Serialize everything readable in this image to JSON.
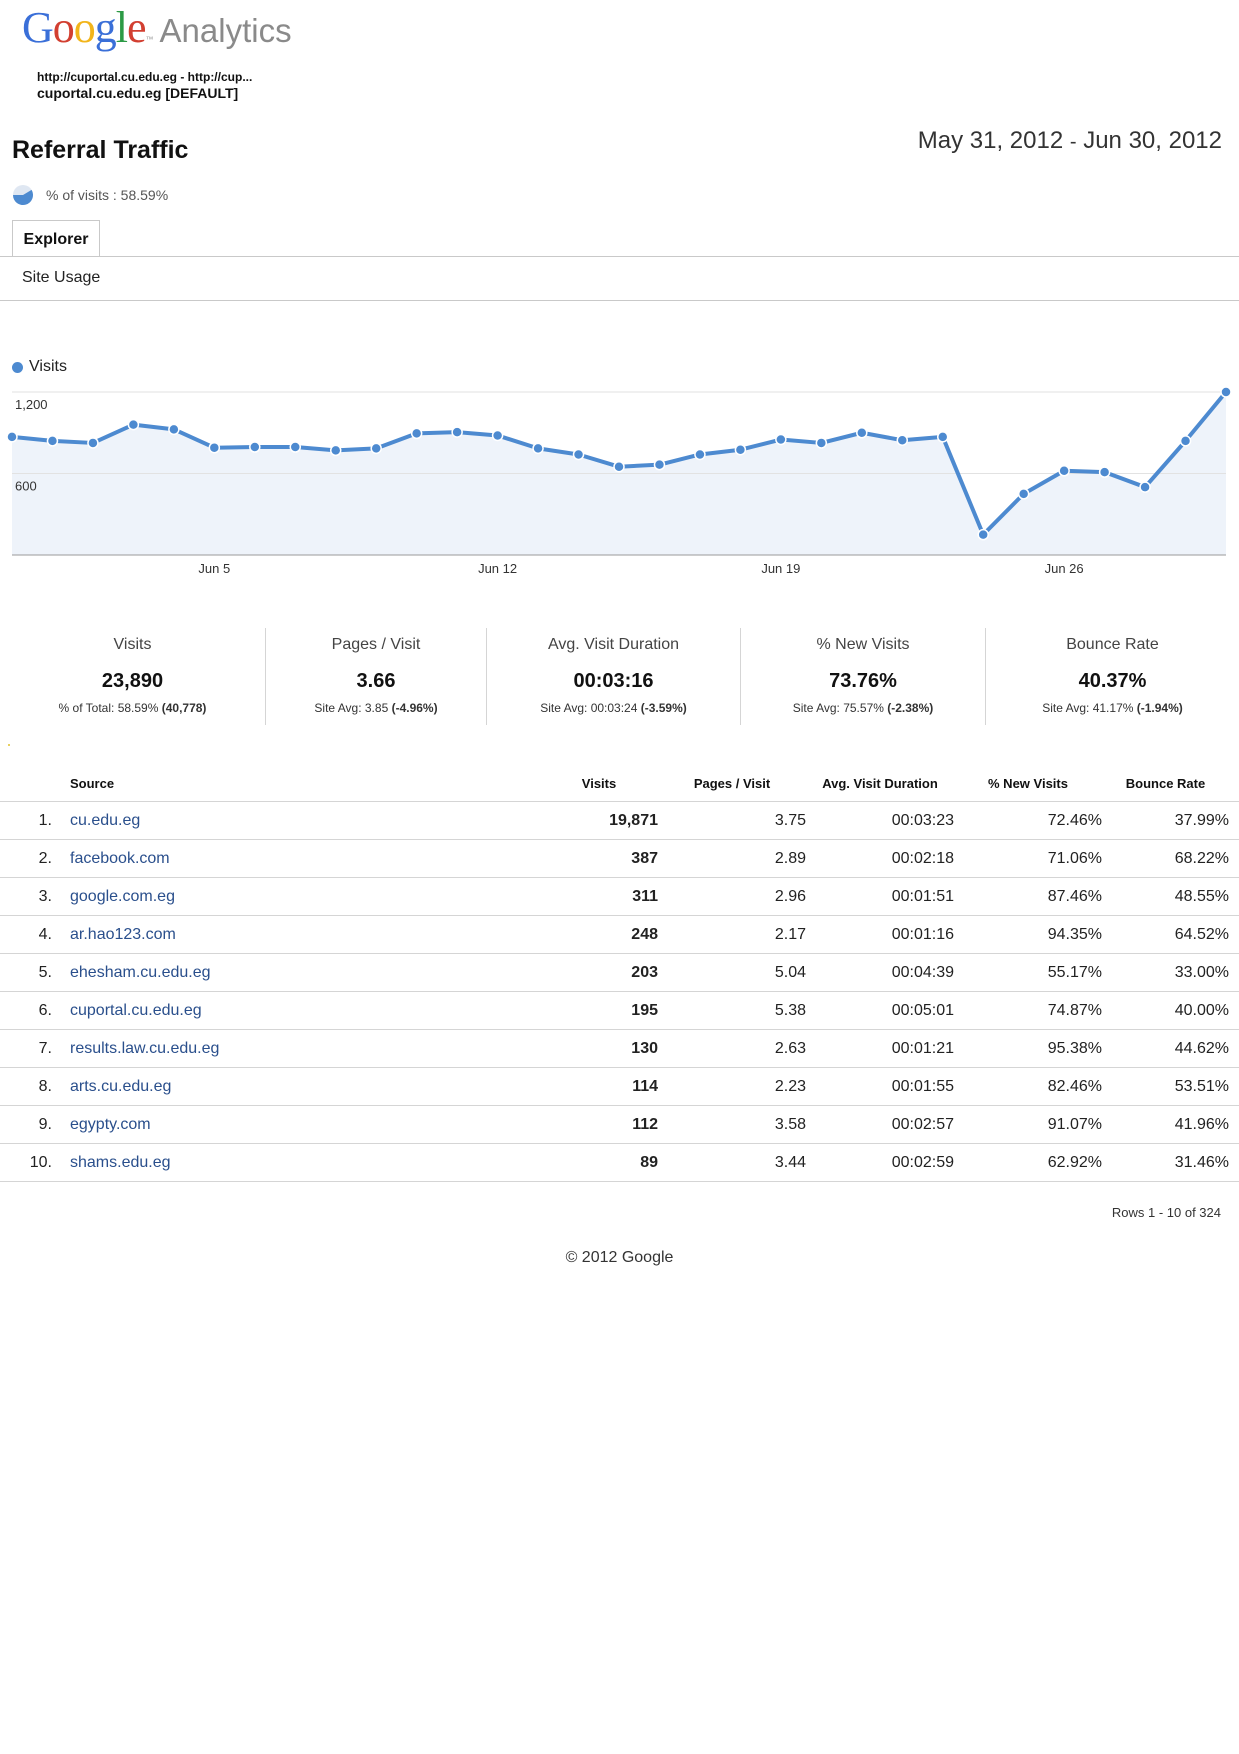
{
  "header": {
    "logo_letters": [
      {
        "ch": "G",
        "color": "#3a6fd8"
      },
      {
        "ch": "o",
        "color": "#d23f31"
      },
      {
        "ch": "o",
        "color": "#f2b51b"
      },
      {
        "ch": "g",
        "color": "#3a6fd8"
      },
      {
        "ch": "l",
        "color": "#2c9a45"
      },
      {
        "ch": "e",
        "color": "#d23f31"
      }
    ],
    "logo_word": "Analytics",
    "property_url": "http://cuportal.cu.edu.eg - http://cup...",
    "property_name": "cuportal.cu.edu.eg [DEFAULT]"
  },
  "report": {
    "title": "Referral Traffic",
    "date_start": "May 31, 2012",
    "date_separator": "-",
    "date_end": "Jun 30, 2012",
    "segment_text": "% of visits : 58.59%",
    "segment_fraction": 0.5859
  },
  "tabs": {
    "explorer": "Explorer",
    "site_usage": "Site Usage"
  },
  "colors": {
    "accent": "#4d8ad0",
    "link": "#2a4f8c",
    "chart_fill": "#eef3fa"
  },
  "chart_data": {
    "type": "area",
    "series": [
      {
        "name": "Visits",
        "values": [
          870,
          840,
          825,
          960,
          925,
          790,
          795,
          795,
          770,
          785,
          895,
          905,
          880,
          785,
          740,
          650,
          665,
          740,
          775,
          850,
          825,
          900,
          845,
          870,
          150,
          450,
          620,
          610,
          500,
          840,
          1200
        ]
      }
    ],
    "x": [
      "May 31",
      "Jun 1",
      "Jun 2",
      "Jun 3",
      "Jun 4",
      "Jun 5",
      "Jun 6",
      "Jun 7",
      "Jun 8",
      "Jun 9",
      "Jun 10",
      "Jun 11",
      "Jun 12",
      "Jun 13",
      "Jun 14",
      "Jun 15",
      "Jun 16",
      "Jun 17",
      "Jun 18",
      "Jun 19",
      "Jun 20",
      "Jun 21",
      "Jun 22",
      "Jun 23",
      "Jun 24",
      "Jun 25",
      "Jun 26",
      "Jun 27",
      "Jun 28",
      "Jun 29",
      "Jun 30"
    ],
    "x_tick_labels": [
      {
        "index": 5,
        "label": "Jun 5"
      },
      {
        "index": 12,
        "label": "Jun 12"
      },
      {
        "index": 19,
        "label": "Jun 19"
      },
      {
        "index": 26,
        "label": "Jun 26"
      }
    ],
    "y_ticks": [
      {
        "value": 1200,
        "label": "1,200"
      },
      {
        "value": 600,
        "label": "600"
      }
    ],
    "ylim": [
      0,
      1200
    ],
    "legend": "top-left",
    "grid": true
  },
  "scorecards": [
    {
      "label": "Visits",
      "value": "23,890",
      "sub_text": "% of Total: 58.59% ",
      "sub_bold": "(40,778)"
    },
    {
      "label": "Pages / Visit",
      "value": "3.66",
      "sub_text": "Site Avg: 3.85 ",
      "sub_bold": "(-4.96%)"
    },
    {
      "label": "Avg. Visit Duration",
      "value": "00:03:16",
      "sub_text": "Site Avg: 00:03:24 ",
      "sub_bold": "(-3.59%)"
    },
    {
      "label": "% New Visits",
      "value": "73.76%",
      "sub_text": "Site Avg: 75.57% ",
      "sub_bold": "(-2.38%)"
    },
    {
      "label": "Bounce Rate",
      "value": "40.37%",
      "sub_text": "Site Avg: 41.17% ",
      "sub_bold": "(-1.94%)"
    }
  ],
  "table": {
    "columns": [
      "Source",
      "Visits",
      "Pages / Visit",
      "Avg. Visit Duration",
      "% New Visits",
      "Bounce Rate"
    ],
    "rows": [
      {
        "idx": "1.",
        "source": "cu.edu.eg",
        "visits": "19,871",
        "ppv": "3.75",
        "dur": "00:03:23",
        "nv": "72.46%",
        "br": "37.99%"
      },
      {
        "idx": "2.",
        "source": "facebook.com",
        "visits": "387",
        "ppv": "2.89",
        "dur": "00:02:18",
        "nv": "71.06%",
        "br": "68.22%"
      },
      {
        "idx": "3.",
        "source": "google.com.eg",
        "visits": "311",
        "ppv": "2.96",
        "dur": "00:01:51",
        "nv": "87.46%",
        "br": "48.55%"
      },
      {
        "idx": "4.",
        "source": "ar.hao123.com",
        "visits": "248",
        "ppv": "2.17",
        "dur": "00:01:16",
        "nv": "94.35%",
        "br": "64.52%"
      },
      {
        "idx": "5.",
        "source": "ehesham.cu.edu.eg",
        "visits": "203",
        "ppv": "5.04",
        "dur": "00:04:39",
        "nv": "55.17%",
        "br": "33.00%"
      },
      {
        "idx": "6.",
        "source": "cuportal.cu.edu.eg",
        "visits": "195",
        "ppv": "5.38",
        "dur": "00:05:01",
        "nv": "74.87%",
        "br": "40.00%"
      },
      {
        "idx": "7.",
        "source": "results.law.cu.edu.eg",
        "visits": "130",
        "ppv": "2.63",
        "dur": "00:01:21",
        "nv": "95.38%",
        "br": "44.62%"
      },
      {
        "idx": "8.",
        "source": "arts.cu.edu.eg",
        "visits": "114",
        "ppv": "2.23",
        "dur": "00:01:55",
        "nv": "82.46%",
        "br": "53.51%"
      },
      {
        "idx": "9.",
        "source": "egypty.com",
        "visits": "112",
        "ppv": "3.58",
        "dur": "00:02:57",
        "nv": "91.07%",
        "br": "41.96%"
      },
      {
        "idx": "10.",
        "source": "shams.edu.eg",
        "visits": "89",
        "ppv": "3.44",
        "dur": "00:02:59",
        "nv": "62.92%",
        "br": "31.46%"
      }
    ],
    "rows_info": "Rows 1 - 10 of 324"
  },
  "footer": {
    "copyright": "© 2012 Google"
  }
}
